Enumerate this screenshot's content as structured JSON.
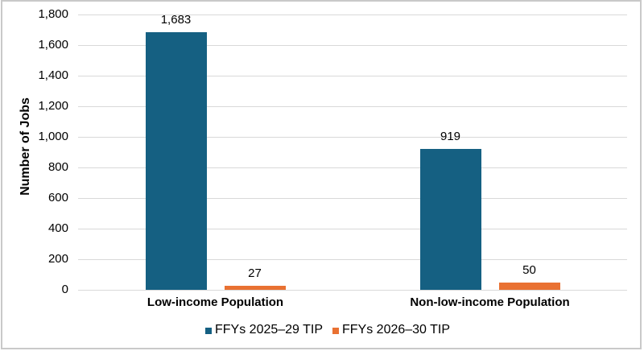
{
  "chart_data": {
    "type": "bar",
    "title": "",
    "ylabel": "Number of Jobs",
    "xlabel": "",
    "categories": [
      "Low-income Population",
      "Non-low-income Population"
    ],
    "series": [
      {
        "name": "FFYs 2025–29 TIP",
        "color": "#156082",
        "values": [
          1683,
          919
        ],
        "value_labels": [
          "1,683",
          "919"
        ]
      },
      {
        "name": "FFYs 2026–30 TIP",
        "color": "#e97132",
        "values": [
          27,
          50
        ],
        "value_labels": [
          "27",
          "50"
        ]
      }
    ],
    "ylim": [
      0,
      1800
    ],
    "ytick_step": 200,
    "ytick_labels": [
      "0",
      "200",
      "400",
      "600",
      "800",
      "1,000",
      "1,200",
      "1,400",
      "1,600",
      "1,800"
    ],
    "grid": "horizontal",
    "gridline_color": "#d9d9d9",
    "legend_position": "bottom",
    "data_labels": "outside-end"
  },
  "colors": {
    "background": "#ffffff",
    "border": "#c9c9c9",
    "text": "#000000",
    "series1": "#156082",
    "series2": "#e97132",
    "gridline": "#d9d9d9"
  }
}
